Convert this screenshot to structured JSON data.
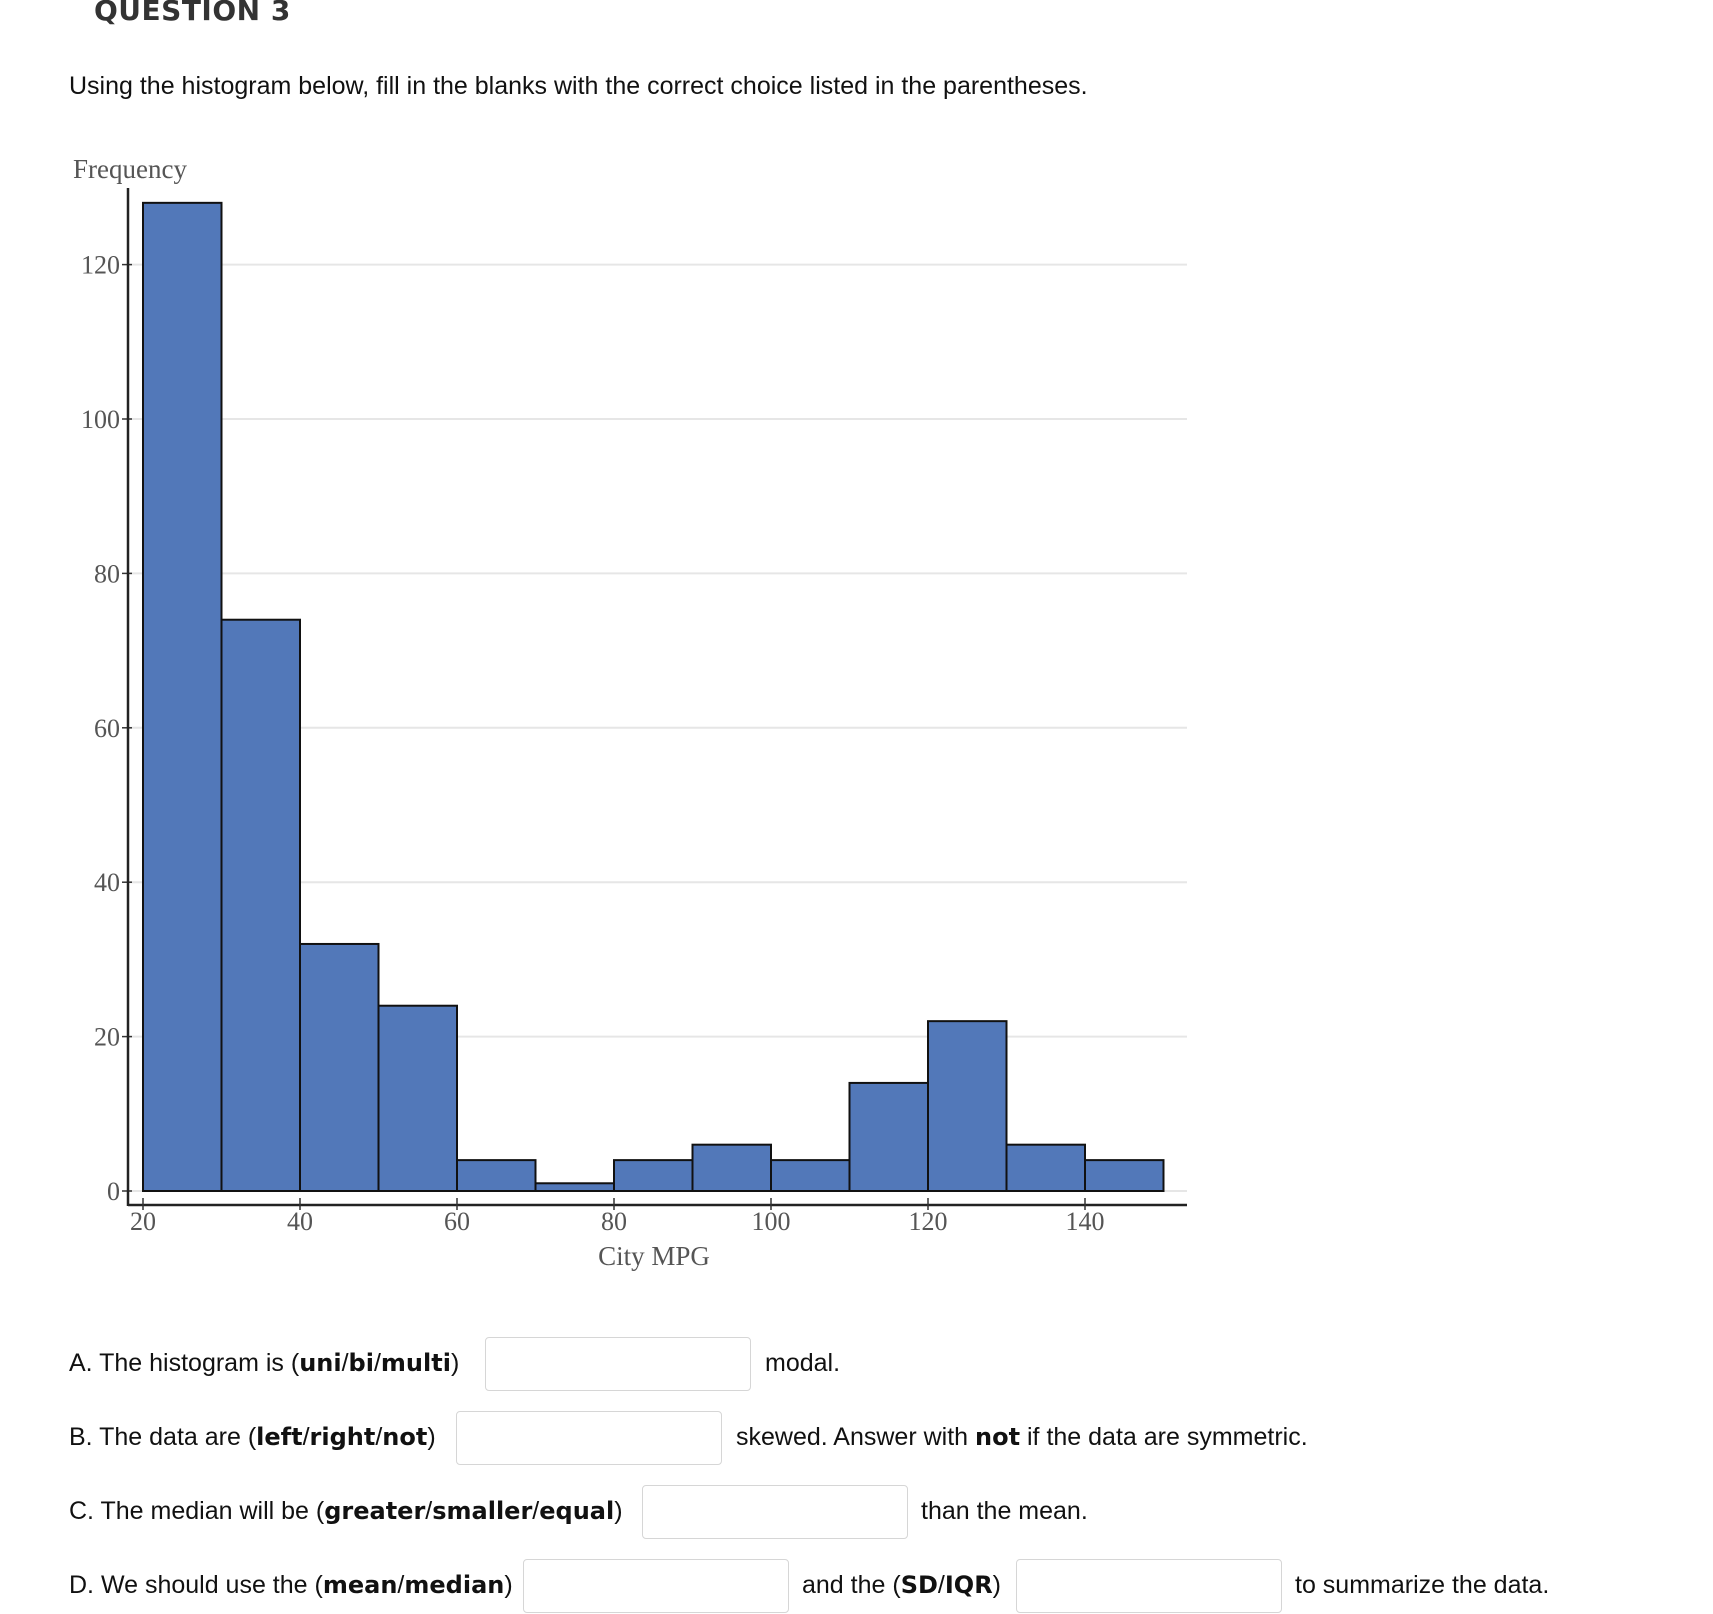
{
  "question_title": "QUESTION 3",
  "instructions": "Using the histogram below, fill in the blanks with the correct choice listed in the parentheses.",
  "chart_data": {
    "type": "bar",
    "ylabel": "Frequency",
    "xlabel": "City MPG",
    "bin_edges": [
      20,
      30,
      40,
      50,
      60,
      70,
      80,
      90,
      100,
      110,
      120,
      130,
      140,
      150
    ],
    "values": [
      128,
      74,
      32,
      24,
      4,
      1,
      4,
      6,
      4,
      14,
      22,
      6,
      4
    ],
    "xticks": [
      20,
      40,
      60,
      80,
      100,
      120,
      140
    ],
    "yticks": [
      0,
      20,
      40,
      60,
      80,
      100,
      120
    ],
    "grid": "horizontal",
    "bar_color": "#5278b9"
  },
  "questions": {
    "a": {
      "pre": "A. The histogram is (",
      "choices": [
        "uni",
        "bi",
        "multi"
      ],
      "post": "modal.",
      "value": ""
    },
    "b": {
      "pre": "B. The data are (",
      "choices": [
        "left",
        "right",
        "not"
      ],
      "post1": "skewed. Answer with ",
      "post_bold": "not",
      "post2": " if the data are symmetric.",
      "value": ""
    },
    "c": {
      "pre": "C. The median will be (",
      "choices": [
        "greater",
        "smaller",
        "equal"
      ],
      "post": "than the mean.",
      "value": ""
    },
    "d": {
      "pre": "D. We should use the (",
      "choices": [
        "mean",
        "median"
      ],
      "mid_pre": "and the (",
      "mid_choices": [
        "SD",
        "IQR"
      ],
      "post": "to summarize the data.",
      "value1": "",
      "value2": ""
    }
  }
}
